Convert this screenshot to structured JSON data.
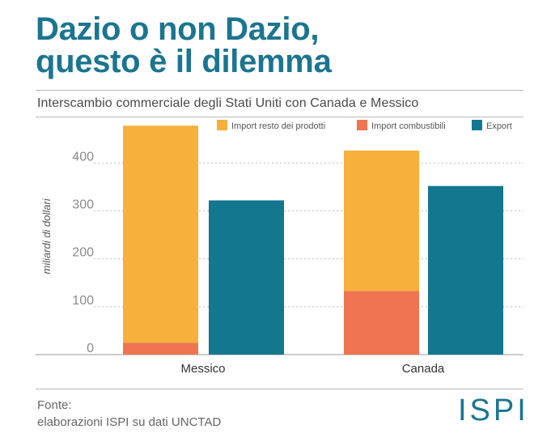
{
  "header": {
    "title_line1": "Dazio o non Dazio,",
    "title_line2": "questo è il dilemma"
  },
  "footer": {
    "source_label": "Fonte:",
    "source_text": "elaborazioni ISPI su dati UNCTAD",
    "logo_text": "ISPI"
  },
  "colors": {
    "title": "#1b7590",
    "import_other": "#f7b03b",
    "import_fuel": "#ef7550",
    "export": "#12778f"
  },
  "chart_data": {
    "type": "bar",
    "stacked_import": true,
    "title": "Interscambio commerciale  degli Stati Uniti con Canada e Messico",
    "ylabel": "miliardi di dollari",
    "xlabel": "",
    "ylim": [
      0,
      500
    ],
    "yticks": [
      0,
      100,
      200,
      300,
      400
    ],
    "grid": true,
    "legend_position": "top",
    "categories": [
      "Messico",
      "Canada"
    ],
    "series": [
      {
        "name": "Import resto dei prodotti",
        "key": "import_other",
        "stack": "import",
        "values": [
          453,
          293
        ]
      },
      {
        "name": "Import combustibili",
        "key": "import_fuel",
        "stack": "import",
        "values": [
          25,
          133
        ]
      },
      {
        "name": "Export",
        "key": "export",
        "stack": "export",
        "values": [
          322,
          352
        ]
      }
    ]
  }
}
